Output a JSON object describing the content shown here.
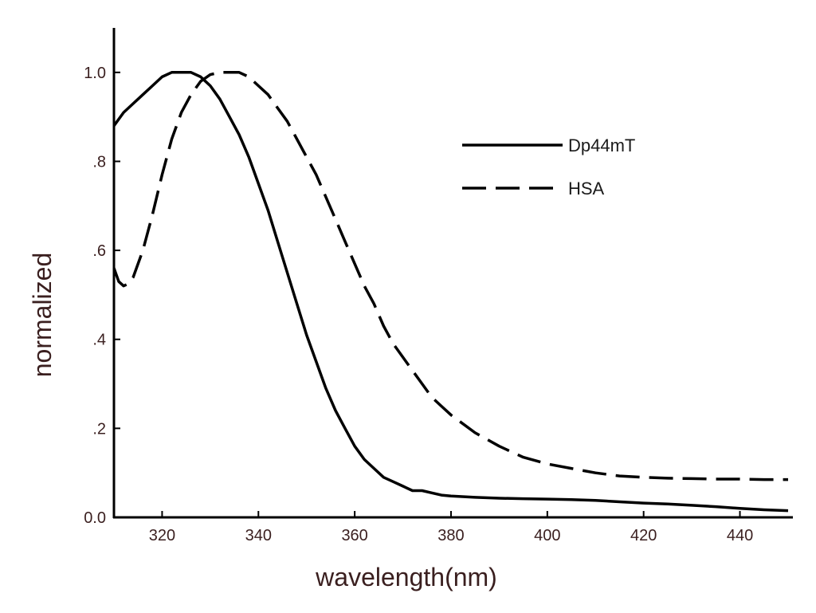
{
  "chart_data": {
    "type": "line",
    "title": "",
    "xlabel": "wavelength(nm)",
    "ylabel": "normalized",
    "xlim": [
      310,
      451
    ],
    "ylim": [
      0.0,
      1.1
    ],
    "grid": false,
    "legend_position": "top-right",
    "x_ticks": [
      320,
      340,
      360,
      380,
      400,
      420,
      440
    ],
    "x_tick_labels": [
      "320",
      "340",
      "360",
      "380",
      "400",
      "420",
      "440"
    ],
    "y_ticks": [
      0.0,
      0.2,
      0.4,
      0.6,
      0.8,
      1.0
    ],
    "y_tick_labels": [
      "0.0",
      ".2",
      ".4",
      ".6",
      ".8",
      "1.0"
    ],
    "series": [
      {
        "name": "Dp44mT",
        "style": "solid",
        "x": [
          310,
          312,
          314,
          316,
          318,
          320,
          322,
          324,
          326,
          328,
          330,
          332,
          334,
          336,
          338,
          340,
          342,
          344,
          346,
          348,
          350,
          352,
          354,
          356,
          358,
          360,
          362,
          364,
          366,
          368,
          370,
          372,
          374,
          376,
          378,
          380,
          385,
          390,
          395,
          400,
          405,
          410,
          415,
          420,
          425,
          430,
          435,
          440,
          445,
          450
        ],
        "y": [
          0.88,
          0.91,
          0.93,
          0.95,
          0.97,
          0.99,
          1.0,
          1.0,
          1.0,
          0.99,
          0.97,
          0.94,
          0.9,
          0.86,
          0.81,
          0.75,
          0.69,
          0.62,
          0.55,
          0.48,
          0.41,
          0.35,
          0.29,
          0.24,
          0.2,
          0.16,
          0.13,
          0.11,
          0.09,
          0.08,
          0.07,
          0.06,
          0.06,
          0.055,
          0.05,
          0.048,
          0.045,
          0.043,
          0.042,
          0.041,
          0.04,
          0.038,
          0.035,
          0.032,
          0.03,
          0.027,
          0.024,
          0.02,
          0.017,
          0.015
        ]
      },
      {
        "name": "HSA",
        "style": "dashed",
        "x": [
          310,
          311,
          312,
          313,
          314,
          316,
          318,
          320,
          322,
          324,
          326,
          328,
          330,
          332,
          334,
          336,
          338,
          340,
          342,
          344,
          346,
          348,
          350,
          352,
          354,
          356,
          358,
          360,
          362,
          364,
          366,
          368,
          370,
          372,
          374,
          376,
          378,
          380,
          385,
          390,
          395,
          400,
          405,
          410,
          415,
          420,
          425,
          430,
          435,
          440,
          445,
          450
        ],
        "y": [
          0.56,
          0.53,
          0.52,
          0.525,
          0.54,
          0.6,
          0.68,
          0.77,
          0.85,
          0.91,
          0.95,
          0.98,
          0.995,
          1.0,
          1.0,
          1.0,
          0.99,
          0.97,
          0.95,
          0.92,
          0.89,
          0.85,
          0.81,
          0.77,
          0.72,
          0.67,
          0.62,
          0.57,
          0.52,
          0.48,
          0.43,
          0.39,
          0.36,
          0.33,
          0.3,
          0.27,
          0.25,
          0.23,
          0.19,
          0.16,
          0.135,
          0.12,
          0.11,
          0.1,
          0.093,
          0.09,
          0.088,
          0.087,
          0.086,
          0.086,
          0.085,
          0.085
        ]
      }
    ]
  }
}
